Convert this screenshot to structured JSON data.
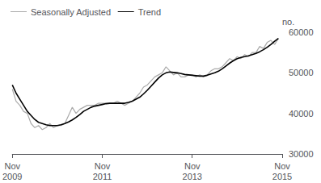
{
  "chart_data": {
    "type": "line",
    "ylabel": "no.",
    "categories": [
      "Nov\n2009",
      null,
      null,
      null,
      null,
      null,
      null,
      null,
      null,
      null,
      null,
      null,
      null,
      null,
      null,
      null,
      null,
      null,
      null,
      null,
      null,
      null,
      null,
      null,
      "Nov\n2011",
      null,
      null,
      null,
      null,
      null,
      null,
      null,
      null,
      null,
      null,
      null,
      null,
      null,
      null,
      null,
      null,
      null,
      null,
      null,
      null,
      null,
      null,
      null,
      "Nov\n2013",
      null,
      null,
      null,
      null,
      null,
      null,
      null,
      null,
      null,
      null,
      null,
      null,
      null,
      null,
      null,
      null,
      null,
      null,
      null,
      null,
      null,
      null,
      null,
      "Nov\n2015"
    ],
    "series": [
      {
        "name": "Seasonally Adjusted",
        "color": "#aaaaaa",
        "values": [
          46000,
          43000,
          42000,
          40500,
          40000,
          37500,
          36500,
          37000,
          36000,
          36500,
          37500,
          36500,
          37000,
          37000,
          37500,
          39500,
          41500,
          40000,
          41000,
          41500,
          42000,
          42000,
          42000,
          42500,
          42500,
          42500,
          42500,
          42500,
          43000,
          42500,
          42000,
          42500,
          43000,
          44000,
          45000,
          46500,
          47000,
          48000,
          49000,
          49500,
          50000,
          51500,
          50500,
          49500,
          50000,
          49000,
          49000,
          49500,
          49500,
          49000,
          49500,
          49000,
          49500,
          50500,
          51000,
          51000,
          51500,
          52500,
          53500,
          53000,
          54000,
          53500,
          54500,
          54000,
          55000,
          55000,
          56500,
          56000,
          57500,
          58000,
          57000,
          58500,
          null
        ]
      },
      {
        "name": "Trend",
        "color": "#000000",
        "values": [
          47000,
          45000,
          43500,
          42000,
          40500,
          39500,
          38500,
          37800,
          37500,
          37200,
          37000,
          37000,
          37000,
          37200,
          37500,
          37900,
          38400,
          39000,
          39700,
          40500,
          41000,
          41500,
          41800,
          42000,
          42200,
          42400,
          42500,
          42500,
          42500,
          42500,
          42500,
          42700,
          43000,
          43500,
          44000,
          44800,
          45700,
          46700,
          47700,
          48700,
          49500,
          50000,
          50200,
          50100,
          50000,
          49800,
          49600,
          49500,
          49400,
          49300,
          49200,
          49200,
          49400,
          49700,
          50000,
          50400,
          51000,
          51700,
          52400,
          53000,
          53500,
          53800,
          54000,
          54200,
          54500,
          54800,
          55200,
          55700,
          56300,
          57000,
          57800,
          58500,
          null
        ]
      }
    ],
    "ylim": [
      30000,
      60000
    ],
    "yticks": [
      30000,
      40000,
      50000,
      60000
    ],
    "grid": false,
    "legend": "upper left"
  }
}
